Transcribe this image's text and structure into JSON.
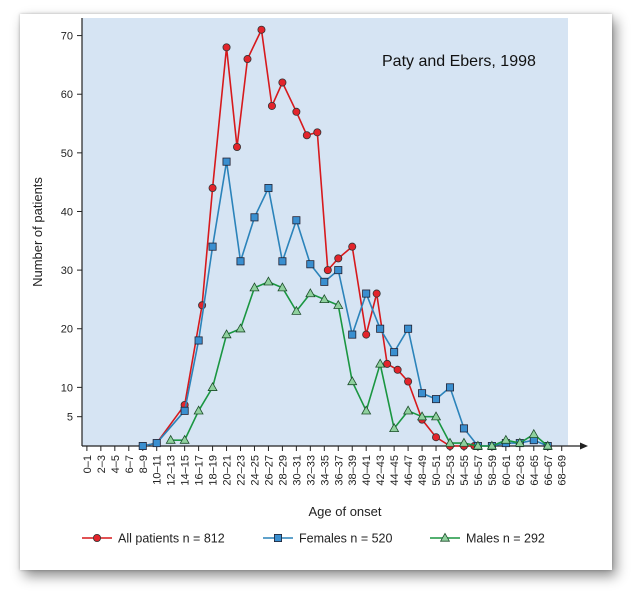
{
  "chart_data": {
    "type": "line",
    "annotation": "Paty and Ebers, 1998",
    "xlabel": "Age of onset",
    "ylabel": "Number of patients",
    "categories": [
      "0–1",
      "2–3",
      "4–5",
      "6–7",
      "8–9",
      "10–11",
      "12–13",
      "14–15",
      "16–17",
      "18–19",
      "20–21",
      "22–23",
      "24–25",
      "26–27",
      "28–29",
      "30–31",
      "32–33",
      "34–35",
      "36–37",
      "38–39",
      "40–41",
      "42–43",
      "44–45",
      "46–47",
      "48–49",
      "50–51",
      "52–53",
      "54–55",
      "56–57",
      "58–59",
      "60–61",
      "62–63",
      "64–65",
      "66–67",
      "68–69"
    ],
    "yticks": [
      5,
      10,
      20,
      30,
      40,
      50,
      60,
      70
    ],
    "ylim": [
      0,
      73
    ],
    "grid": false,
    "legend_position": "bottom",
    "series": [
      {
        "name": "All patients n = 812",
        "color": "#d7191c",
        "marker": "circle",
        "x": [
          8.5,
          10.5,
          14.5,
          17.0,
          18.5,
          20.5,
          22.0,
          23.5,
          25.5,
          27.0,
          28.5,
          30.5,
          32.0,
          33.5,
          35.0,
          36.5,
          38.5,
          40.5,
          42.0,
          43.5,
          45.0,
          46.5,
          48.5,
          50.5,
          52.5,
          54.5,
          56.0
        ],
        "y": [
          0,
          0.5,
          7,
          24,
          44,
          68,
          51,
          66,
          71,
          58,
          62,
          57,
          53,
          53.5,
          30,
          32,
          34,
          19,
          26,
          14,
          13,
          11,
          4.5,
          1.5,
          0,
          0,
          0
        ],
        "note": "plotted against category index"
      },
      {
        "name": "Females  n = 520",
        "color": "#2b83ba",
        "marker": "square",
        "x": [
          8.5,
          10.5,
          14.5,
          16.5,
          18.5,
          20.5,
          22.5,
          24.5,
          26.5,
          28.5,
          30.5,
          32.5,
          34.5,
          36.5,
          38.5,
          40.5,
          42.5,
          44.5,
          46.5,
          48.5,
          50.5,
          52.5,
          54.5,
          56.5,
          58.5,
          60.5,
          62.5,
          64.5,
          66.5
        ],
        "y": [
          0,
          0.5,
          6,
          18,
          34,
          48.5,
          31.5,
          39,
          44,
          31.5,
          38.5,
          31,
          28,
          30,
          19,
          26,
          20,
          16,
          20,
          9,
          8,
          10,
          3,
          0,
          0,
          0.5,
          0.5,
          1,
          0
        ]
      },
      {
        "name": "Males  n = 292",
        "color": "#1a9641",
        "marker": "triangle",
        "x": [
          12.5,
          14.5,
          16.5,
          18.5,
          20.5,
          22.5,
          24.5,
          26.5,
          28.5,
          30.5,
          32.5,
          34.5,
          36.5,
          38.5,
          40.5,
          42.5,
          44.5,
          46.5,
          48.5,
          50.5,
          52.5,
          54.5,
          56.5,
          58.5,
          60.5,
          62.5,
          64.5,
          66.5
        ],
        "y": [
          1,
          1,
          6,
          10,
          19,
          20,
          27,
          28,
          27,
          23,
          26,
          25,
          24,
          11,
          6,
          14,
          3,
          6,
          5,
          5,
          0.5,
          0.5,
          0,
          0,
          1,
          0.5,
          2,
          0
        ]
      }
    ]
  },
  "colors": {
    "plot_background": "#d6e4f3",
    "axis": "#222222"
  }
}
